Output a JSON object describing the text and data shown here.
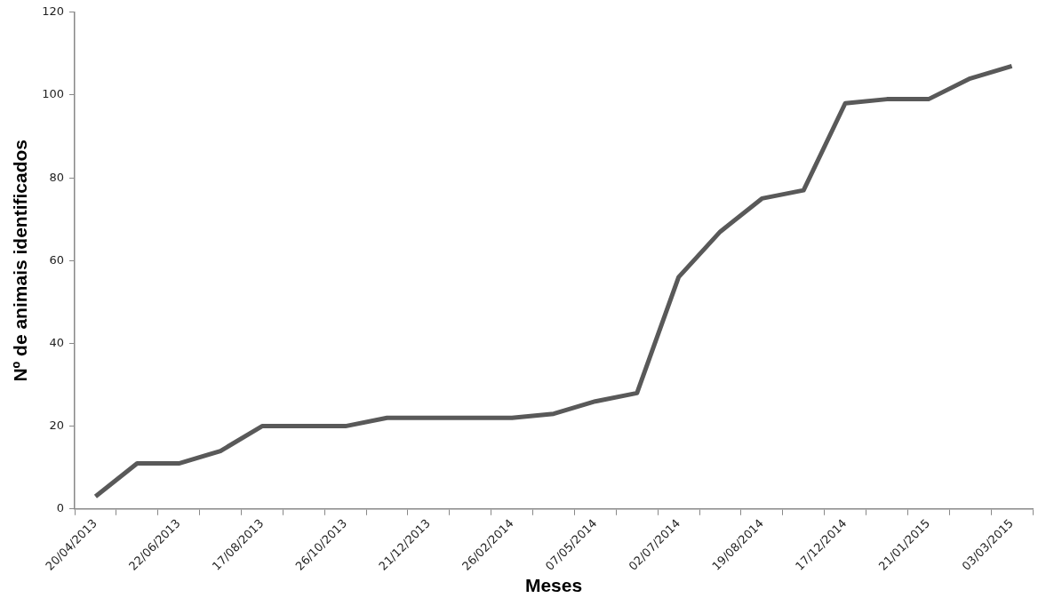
{
  "chart_data": {
    "type": "line",
    "xlabel": "Meses",
    "ylabel": "Nº de animais identificados",
    "categories": [
      "20/04/2013",
      null,
      "22/06/2013",
      null,
      "17/08/2013",
      null,
      "26/10/2013",
      null,
      "21/12/2013",
      null,
      "26/02/2014",
      null,
      "07/05/2014",
      null,
      "02/07/2014",
      null,
      "19/08/2014",
      null,
      "17/12/2014",
      null,
      "21/01/2015",
      null,
      "03/03/2015"
    ],
    "series": [
      {
        "color": "#595959",
        "values": [
          3,
          11,
          11,
          14,
          20,
          20,
          20,
          22,
          22,
          22,
          22,
          23,
          26,
          28,
          56,
          67,
          75,
          77,
          98,
          99,
          99,
          104,
          107
        ]
      }
    ],
    "ylim": [
      0,
      120
    ],
    "yticks": [
      0,
      20,
      40,
      60,
      80,
      100,
      120
    ],
    "grid": false,
    "legend": false,
    "marker": "none",
    "line_style": "solid"
  }
}
